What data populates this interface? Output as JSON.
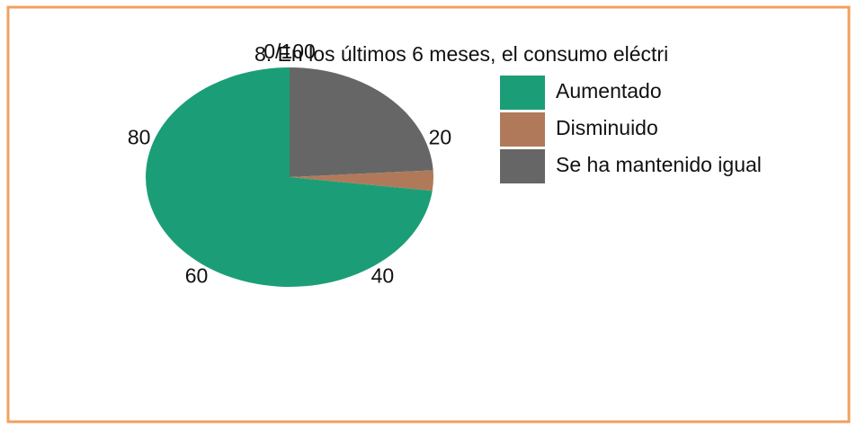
{
  "chart_data": {
    "type": "pie",
    "title": "8. En los últimos 6 meses, el consumo eléctri",
    "categories": [
      "Aumentado",
      "Disminuido",
      "Se ha mantenido igual"
    ],
    "values": [
      73,
      3,
      24
    ],
    "colors": [
      "#1b9e77",
      "#b07a5a",
      "#666666"
    ],
    "ticks": [
      {
        "value": 0,
        "label": "0/100"
      },
      20,
      40,
      60,
      80
    ],
    "range": [
      0,
      100
    ]
  }
}
